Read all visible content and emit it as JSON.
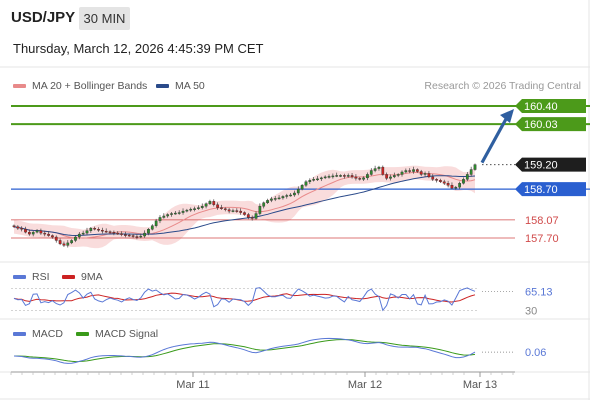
{
  "header": {
    "symbol": "USD/JPY",
    "timeframe": "30 MIN",
    "datetime": "Thursday, March 12, 2026 4:45:39 PM CET",
    "copyright": "Research © 2026 Trading Central"
  },
  "colors": {
    "candle_up": "#2e8b2e",
    "candle_down": "#cc2222",
    "ma20": "#e88a8a",
    "bollinger_fill": "#f8d6d6",
    "ma50": "#2a4a8a",
    "resistance": "#4c9a1a",
    "pivot": "#2a5fd0",
    "support": "#d04a4a",
    "arrow": "#2f5fa0",
    "rsi": "#5a78d6",
    "rsi_ma": "#cc2222",
    "macd": "#5a78d6",
    "macd_signal": "#3a9a1a"
  },
  "chart_data": [
    {
      "type": "candlestick",
      "legend": [
        "MA 20 + Bollinger Bands",
        "MA 50"
      ],
      "ylim": [
        157.5,
        160.5
      ],
      "x_labels": [
        "Mar 11",
        "Mar 12",
        "Mar 13"
      ],
      "levels": [
        {
          "label": "160.40",
          "value": 160.4,
          "kind": "resistance"
        },
        {
          "label": "160.03",
          "value": 160.03,
          "kind": "resistance"
        },
        {
          "label": "159.20",
          "value": 159.2,
          "kind": "last"
        },
        {
          "label": "158.70",
          "value": 158.7,
          "kind": "pivot"
        },
        {
          "label": "158.07",
          "value": 158.07,
          "kind": "support"
        },
        {
          "label": "157.70",
          "value": 157.7,
          "kind": "support"
        }
      ],
      "close": [
        157.93,
        157.9,
        157.88,
        157.82,
        157.78,
        157.82,
        157.85,
        157.8,
        157.78,
        157.75,
        157.72,
        157.65,
        157.58,
        157.55,
        157.6,
        157.65,
        157.72,
        157.78,
        157.8,
        157.85,
        157.9,
        157.88,
        157.86,
        157.84,
        157.83,
        157.82,
        157.8,
        157.79,
        157.77,
        157.76,
        157.75,
        157.73,
        157.72,
        157.74,
        157.8,
        157.88,
        157.95,
        158.05,
        158.12,
        158.15,
        158.18,
        158.2,
        158.21,
        158.22,
        158.25,
        158.27,
        158.29,
        158.3,
        158.32,
        158.35,
        158.4,
        158.45,
        158.38,
        158.32,
        158.3,
        158.28,
        158.25,
        158.26,
        158.25,
        158.22,
        158.18,
        158.12,
        158.1,
        158.2,
        158.35,
        158.42,
        158.47,
        158.5,
        158.51,
        158.52,
        158.55,
        158.57,
        158.58,
        158.62,
        158.7,
        158.78,
        158.85,
        158.88,
        158.9,
        158.91,
        158.93,
        158.95,
        158.96,
        158.97,
        158.98,
        158.98,
        158.96,
        158.98,
        158.95,
        158.92,
        158.9,
        158.93,
        159.0,
        159.08,
        159.12,
        159.15,
        159.0,
        158.92,
        158.95,
        158.98,
        159.0,
        159.05,
        159.08,
        159.06,
        159.1,
        159.06,
        159.0,
        159.02,
        158.95,
        158.9,
        158.88,
        158.85,
        158.82,
        158.78,
        158.72,
        158.74,
        158.82,
        158.9,
        159.0,
        159.1,
        159.2
      ],
      "ma20_last": 158.85,
      "ma50_last": 158.8,
      "projection_target": 160.4
    },
    {
      "type": "line",
      "legend": [
        "RSI",
        "9MA"
      ],
      "ticks": [
        "30"
      ],
      "ylim": [
        0,
        100
      ],
      "last_value_label": "65.13",
      "last_value": 65.13
    },
    {
      "type": "line",
      "legend": [
        "MACD",
        "MACD Signal"
      ],
      "last_value_label": "0.06",
      "last_value": 0.06
    }
  ]
}
